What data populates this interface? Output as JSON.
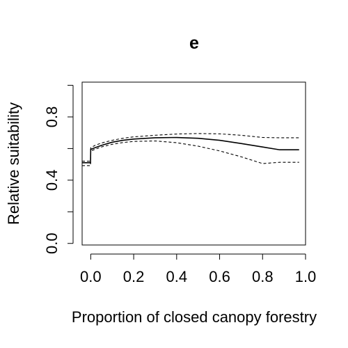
{
  "chart_data": {
    "type": "line",
    "title": "e",
    "xlabel": "Proportion of closed canopy forestry",
    "ylabel": "Relative suitability",
    "xlim": [
      -0.04,
      1.0
    ],
    "ylim": [
      -0.01,
      1.02
    ],
    "x_ticks": [
      0.0,
      0.2,
      0.4,
      0.6,
      0.8,
      1.0
    ],
    "x_tick_labels": [
      "0.0",
      "0.2",
      "0.4",
      "0.6",
      "0.8",
      "1.0"
    ],
    "y_ticks": [
      0.0,
      0.2,
      0.4,
      0.6,
      0.8,
      1.0
    ],
    "y_tick_labels": [
      "0.0",
      "",
      "0.4",
      "",
      "0.8",
      ""
    ],
    "grid": false,
    "legend": "none",
    "series": [
      {
        "style": "solid",
        "x": [
          -0.04,
          -0.001,
          0.0,
          0.02,
          0.05,
          0.1,
          0.15,
          0.2,
          0.3,
          0.4,
          0.5,
          0.6,
          0.7,
          0.8,
          0.88,
          0.97
        ],
        "y": [
          0.51,
          0.51,
          0.595,
          0.605,
          0.62,
          0.64,
          0.652,
          0.66,
          0.668,
          0.67,
          0.665,
          0.652,
          0.632,
          0.61,
          0.592,
          0.592
        ]
      },
      {
        "style": "dashed",
        "x": [
          -0.04,
          -0.001,
          0.0,
          0.02,
          0.05,
          0.1,
          0.15,
          0.2,
          0.3,
          0.4,
          0.5,
          0.6,
          0.7,
          0.8,
          0.88,
          0.97
        ],
        "y": [
          0.52,
          0.52,
          0.605,
          0.62,
          0.635,
          0.652,
          0.665,
          0.674,
          0.684,
          0.692,
          0.695,
          0.693,
          0.684,
          0.67,
          0.668,
          0.668
        ]
      },
      {
        "style": "dashed",
        "x": [
          -0.04,
          -0.001,
          0.0,
          0.02,
          0.05,
          0.1,
          0.15,
          0.2,
          0.3,
          0.4,
          0.5,
          0.6,
          0.7,
          0.8,
          0.88,
          0.97
        ],
        "y": [
          0.492,
          0.492,
          0.585,
          0.595,
          0.61,
          0.627,
          0.638,
          0.645,
          0.648,
          0.637,
          0.615,
          0.585,
          0.548,
          0.505,
          0.513,
          0.513
        ]
      }
    ]
  }
}
